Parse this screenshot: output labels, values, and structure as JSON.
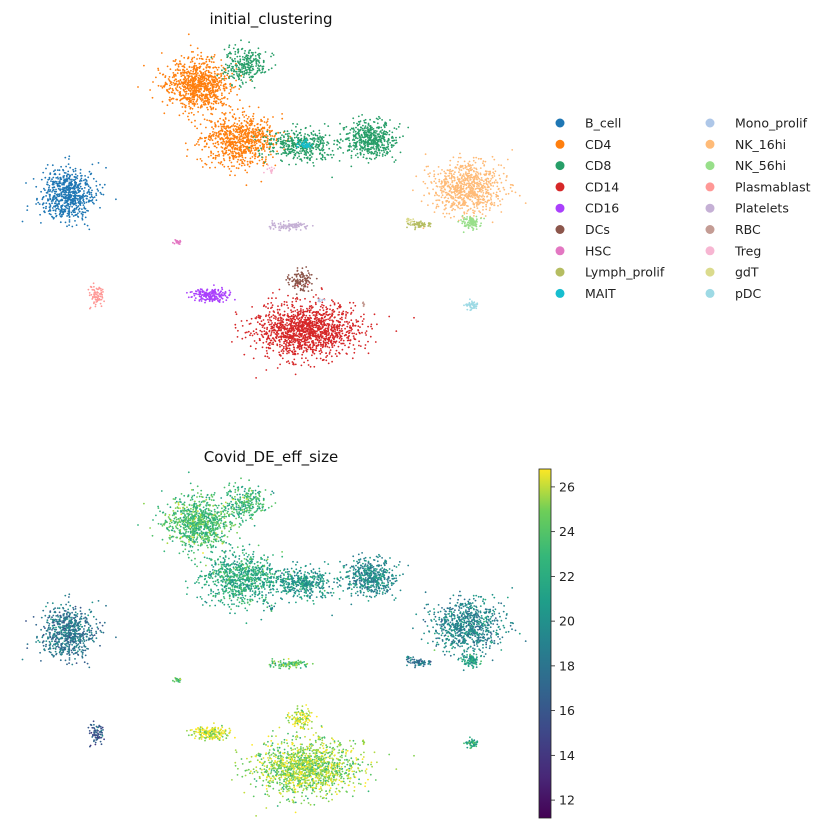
{
  "chart_data": [
    {
      "type": "scatter",
      "title": "initial_clustering",
      "xlabel": "",
      "ylabel": "",
      "legend": {
        "placement": "right",
        "columns": 2,
        "entries": [
          {
            "name": "B_cell",
            "color": "#1f77b4"
          },
          {
            "name": "CD4",
            "color": "#ff7f0e"
          },
          {
            "name": "CD8",
            "color": "#279e68"
          },
          {
            "name": "CD14",
            "color": "#d62728"
          },
          {
            "name": "CD16",
            "color": "#aa40fc"
          },
          {
            "name": "DCs",
            "color": "#8c564b"
          },
          {
            "name": "HSC",
            "color": "#e377c2"
          },
          {
            "name": "Lymph_prolif",
            "color": "#b5bd61"
          },
          {
            "name": "MAIT",
            "color": "#17becf"
          },
          {
            "name": "Mono_prolif",
            "color": "#aec7e8"
          },
          {
            "name": "NK_16hi",
            "color": "#ffbb78"
          },
          {
            "name": "NK_56hi",
            "color": "#98df8a"
          },
          {
            "name": "Plasmablast",
            "color": "#ff9896"
          },
          {
            "name": "Platelets",
            "color": "#c5b0d5"
          },
          {
            "name": "RBC",
            "color": "#c49c94"
          },
          {
            "name": "Treg",
            "color": "#f7b6d2"
          },
          {
            "name": "gdT",
            "color": "#dbdb8d"
          },
          {
            "name": "pDC",
            "color": "#9edae5"
          }
        ]
      },
      "grid": false,
      "axes_visible": false
    },
    {
      "type": "scatter",
      "title": "Covid_DE_eff_size",
      "xlabel": "",
      "ylabel": "",
      "colorbar": {
        "colormap": "viridis",
        "range": [
          11.2,
          26.8
        ],
        "ticks": [
          12,
          14,
          16,
          18,
          20,
          22,
          24,
          26
        ]
      },
      "grid": false,
      "axes_visible": false
    }
  ]
}
